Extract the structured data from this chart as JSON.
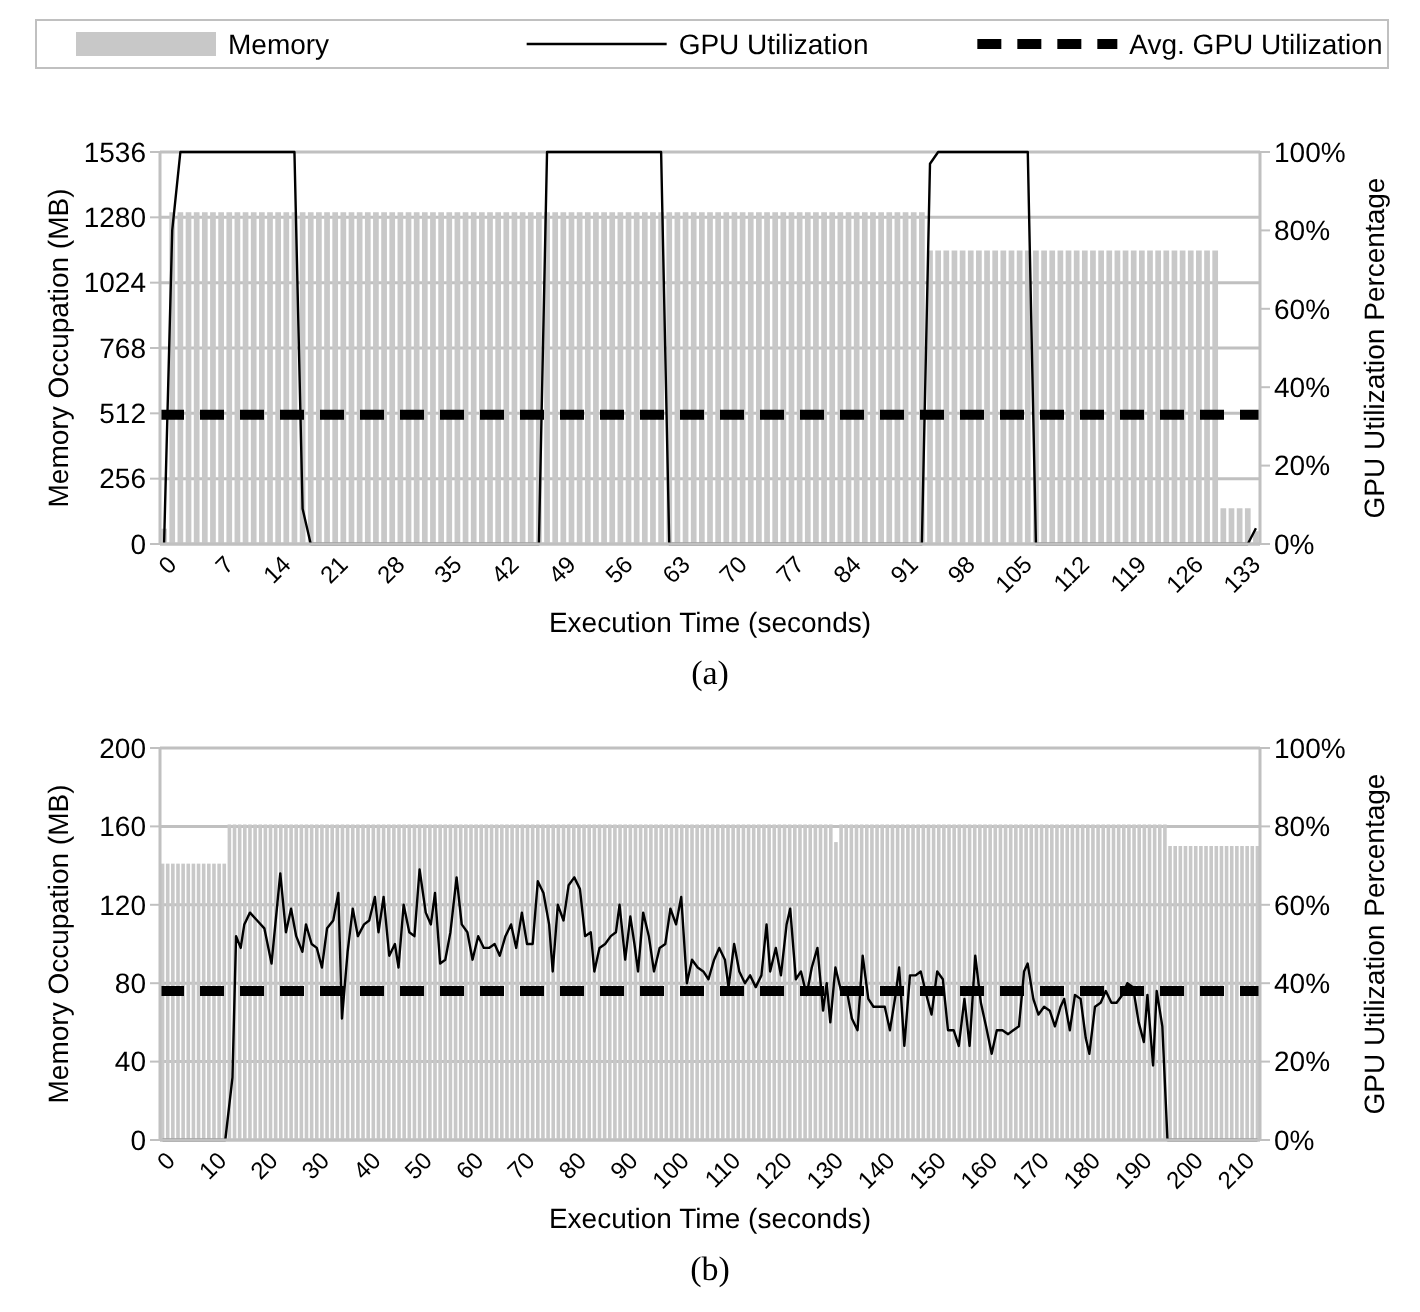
{
  "chart_data": [
    {
      "type": "bar",
      "title": "(a)",
      "xlabel": "Execution Time (seconds)",
      "ylabel": "Memory Occupation (MB)",
      "y2label": "GPU Utilization Percentage",
      "grid": "y",
      "legend": "top",
      "xlim": [
        -0.5,
        134.5
      ],
      "xticks": [
        0,
        7,
        14,
        21,
        28,
        35,
        42,
        49,
        56,
        63,
        70,
        77,
        84,
        91,
        98,
        105,
        112,
        119,
        126,
        133
      ],
      "ylim": [
        0,
        1536
      ],
      "yticks": [
        0,
        256,
        512,
        768,
        1024,
        1280,
        1536
      ],
      "y2lim": [
        0,
        100
      ],
      "y2ticks": [
        {
          "value": 0,
          "label": "0%"
        },
        {
          "value": 20,
          "label": "20%"
        },
        {
          "value": 40,
          "label": "40%"
        },
        {
          "value": 60,
          "label": "60%"
        },
        {
          "value": 80,
          "label": "80%"
        },
        {
          "value": 100,
          "label": "100%"
        }
      ],
      "ref_lines": [
        {
          "axis": "y2",
          "value": 33,
          "label": "Avg. GPU Utilization",
          "color": "#000000",
          "line_style": "dashed"
        }
      ],
      "series": [
        {
          "name": "Memory",
          "color": "#c8c8c8",
          "x": [
            0,
            1,
            2,
            3,
            4,
            5,
            6,
            7,
            8,
            9,
            10,
            11,
            12,
            13,
            14,
            15,
            16,
            17,
            18,
            19,
            20,
            21,
            22,
            23,
            24,
            25,
            26,
            27,
            28,
            29,
            30,
            31,
            32,
            33,
            34,
            35,
            36,
            37,
            38,
            39,
            40,
            41,
            42,
            43,
            44,
            45,
            46,
            47,
            48,
            49,
            50,
            51,
            52,
            53,
            54,
            55,
            56,
            57,
            58,
            59,
            60,
            61,
            62,
            63,
            64,
            65,
            66,
            67,
            68,
            69,
            70,
            71,
            72,
            73,
            74,
            75,
            76,
            77,
            78,
            79,
            80,
            81,
            82,
            83,
            84,
            85,
            86,
            87,
            88,
            89,
            90,
            91,
            92,
            93,
            94,
            95,
            96,
            97,
            98,
            99,
            100,
            101,
            102,
            103,
            104,
            105,
            106,
            107,
            108,
            109,
            110,
            111,
            112,
            113,
            114,
            115,
            116,
            117,
            118,
            119,
            120,
            121,
            122,
            123,
            124,
            125,
            126,
            127,
            128,
            129,
            130,
            131,
            132,
            133,
            134
          ],
          "values": [
            60,
            1300,
            1300,
            1300,
            1300,
            1300,
            1300,
            1300,
            1300,
            1300,
            1300,
            1300,
            1300,
            1300,
            1300,
            1300,
            1300,
            1300,
            1300,
            1300,
            1300,
            1300,
            1300,
            1300,
            1300,
            1300,
            1300,
            1300,
            1300,
            1300,
            1300,
            1300,
            1300,
            1300,
            1300,
            1300,
            1300,
            1300,
            1300,
            1300,
            1300,
            1300,
            1300,
            1300,
            1300,
            1300,
            1300,
            1300,
            1300,
            1300,
            1300,
            1300,
            1300,
            1300,
            1300,
            1300,
            1300,
            1300,
            1300,
            1300,
            1300,
            1300,
            1300,
            1300,
            1300,
            1300,
            1300,
            1300,
            1300,
            1300,
            1300,
            1300,
            1300,
            1300,
            1300,
            1300,
            1300,
            1300,
            1300,
            1300,
            1300,
            1300,
            1300,
            1300,
            1300,
            1300,
            1300,
            1300,
            1300,
            1300,
            1300,
            1300,
            1300,
            1300,
            1150,
            1150,
            1150,
            1150,
            1150,
            1150,
            1150,
            1150,
            1150,
            1150,
            1150,
            1150,
            1150,
            1150,
            1150,
            1150,
            1150,
            1150,
            1150,
            1150,
            1150,
            1150,
            1150,
            1150,
            1150,
            1150,
            1150,
            1150,
            1150,
            1150,
            1150,
            1150,
            1150,
            1150,
            1150,
            1150,
            140,
            140,
            140,
            140,
            50
          ]
        },
        {
          "name": "GPU Utilization",
          "type": "line",
          "axis": "y2",
          "color": "#000000",
          "x": [
            0,
            1,
            2,
            16,
            17,
            18,
            46,
            47,
            61,
            62,
            93,
            94,
            95,
            106,
            107,
            133,
            134
          ],
          "values": [
            0,
            80,
            100,
            100,
            9,
            0,
            0,
            100,
            100,
            0,
            0,
            97,
            100,
            100,
            0,
            0,
            4
          ]
        }
      ]
    },
    {
      "type": "bar",
      "title": "(b)",
      "xlabel": "Execution Time (seconds)",
      "ylabel": "Memory Occupation (MB)",
      "y2label": "GPU Utilization Percentage",
      "grid": "y",
      "xlim": [
        -0.5,
        213.5
      ],
      "xticks": [
        0,
        10,
        20,
        30,
        40,
        50,
        60,
        70,
        80,
        90,
        100,
        110,
        120,
        130,
        140,
        150,
        160,
        170,
        180,
        190,
        200,
        210
      ],
      "ylim": [
        0,
        200
      ],
      "yticks": [
        0,
        40,
        80,
        120,
        160,
        200
      ],
      "y2lim": [
        0,
        100
      ],
      "y2ticks": [
        {
          "value": 0,
          "label": "0%"
        },
        {
          "value": 20,
          "label": "20%"
        },
        {
          "value": 40,
          "label": "40%"
        },
        {
          "value": 60,
          "label": "60%"
        },
        {
          "value": 80,
          "label": "80%"
        },
        {
          "value": 100,
          "label": "100%"
        }
      ],
      "ref_lines": [
        {
          "axis": "y2",
          "value": 38,
          "color": "#000000",
          "line_style": "dashed"
        }
      ],
      "series": [
        {
          "color": "#c8c8c8",
          "x": [
            0,
            1,
            2,
            3,
            4,
            5,
            6,
            7,
            8,
            9,
            10,
            11,
            12,
            13,
            14,
            15,
            16,
            17,
            18,
            19,
            20,
            21,
            22,
            23,
            24,
            25,
            26,
            27,
            28,
            29,
            30,
            31,
            32,
            33,
            34,
            35,
            36,
            37,
            38,
            39,
            40,
            41,
            42,
            43,
            44,
            45,
            46,
            47,
            48,
            49,
            50,
            51,
            52,
            53,
            54,
            55,
            56,
            57,
            58,
            59,
            60,
            61,
            62,
            63,
            64,
            65,
            66,
            67,
            68,
            69,
            70,
            71,
            72,
            73,
            74,
            75,
            76,
            77,
            78,
            79,
            80,
            81,
            82,
            83,
            84,
            85,
            86,
            87,
            88,
            89,
            90,
            91,
            92,
            93,
            94,
            95,
            96,
            97,
            98,
            99,
            100,
            101,
            102,
            103,
            104,
            105,
            106,
            107,
            108,
            109,
            110,
            111,
            112,
            113,
            114,
            115,
            116,
            117,
            118,
            119,
            120,
            121,
            122,
            123,
            124,
            125,
            126,
            127,
            128,
            129,
            130,
            131,
            132,
            133,
            134,
            135,
            136,
            137,
            138,
            139,
            140,
            141,
            142,
            143,
            144,
            145,
            146,
            147,
            148,
            149,
            150,
            151,
            152,
            153,
            154,
            155,
            156,
            157,
            158,
            159,
            160,
            161,
            162,
            163,
            164,
            165,
            166,
            167,
            168,
            169,
            170,
            171,
            172,
            173,
            174,
            175,
            176,
            177,
            178,
            179,
            180,
            181,
            182,
            183,
            184,
            185,
            186,
            187,
            188,
            189,
            190,
            191,
            192,
            193,
            194,
            195,
            196,
            197,
            198,
            199,
            200,
            201,
            202,
            203,
            204,
            205,
            206,
            207,
            208,
            209,
            210,
            211,
            212,
            213
          ],
          "values": [
            141,
            141,
            141,
            141,
            141,
            141,
            141,
            141,
            141,
            141,
            141,
            141,
            141,
            161,
            161,
            161,
            161,
            161,
            161,
            161,
            161,
            161,
            161,
            161,
            161,
            161,
            161,
            161,
            161,
            161,
            161,
            161,
            161,
            161,
            161,
            161,
            161,
            161,
            161,
            161,
            161,
            161,
            161,
            161,
            161,
            161,
            161,
            161,
            161,
            161,
            161,
            161,
            161,
            161,
            161,
            161,
            161,
            161,
            161,
            161,
            161,
            161,
            161,
            161,
            161,
            161,
            161,
            161,
            161,
            161,
            161,
            161,
            161,
            161,
            161,
            161,
            161,
            161,
            161,
            161,
            161,
            161,
            161,
            161,
            161,
            161,
            161,
            161,
            161,
            161,
            161,
            161,
            161,
            161,
            161,
            161,
            161,
            161,
            161,
            161,
            161,
            161,
            161,
            161,
            161,
            161,
            161,
            161,
            161,
            161,
            161,
            161,
            161,
            161,
            161,
            161,
            161,
            161,
            161,
            161,
            161,
            161,
            161,
            161,
            161,
            161,
            161,
            161,
            161,
            161,
            161,
            152,
            161,
            161,
            161,
            161,
            161,
            161,
            161,
            161,
            161,
            161,
            161,
            161,
            161,
            161,
            161,
            161,
            161,
            161,
            161,
            161,
            161,
            161,
            161,
            161,
            161,
            161,
            161,
            161,
            161,
            161,
            161,
            161,
            161,
            161,
            161,
            161,
            161,
            161,
            161,
            161,
            161,
            161,
            161,
            161,
            161,
            161,
            161,
            161,
            161,
            161,
            161,
            161,
            161,
            161,
            161,
            161,
            161,
            161,
            161,
            161,
            161,
            161,
            161,
            161,
            150,
            150,
            150,
            150,
            150,
            150,
            150,
            150,
            150,
            150,
            150,
            150,
            150,
            150,
            150,
            150,
            150,
            150
          ]
        },
        {
          "type": "line",
          "axis": "y2",
          "color": "#000000",
          "x": [
            0,
            12.2,
            13.6,
            14.3,
            15.2,
            15.9,
            17,
            18.4,
            19.8,
            21.2,
            22.9,
            24,
            25,
            26,
            27.2,
            27.9,
            29,
            30,
            31,
            32,
            33.2,
            34.2,
            34.9,
            36,
            37,
            38,
            39.2,
            40.2,
            41.3,
            42,
            43,
            44.1,
            45.2,
            45.9,
            46.9,
            48,
            49,
            50,
            51.2,
            52.2,
            53,
            54,
            55,
            56,
            57.2,
            58.2,
            59.3,
            60.3,
            61.4,
            62.5,
            63.5,
            64.6,
            65.6,
            66.7,
            67.8,
            68.8,
            69.9,
            70.9,
            72,
            73,
            74.1,
            75.2,
            75.9,
            76.9,
            78,
            79,
            80.1,
            81.2,
            82.2,
            83.3,
            84,
            85,
            86.1,
            87.2,
            88.2,
            88.9,
            90,
            91,
            91.8,
            92.5,
            93.5,
            94.6,
            95.6,
            96.7,
            97.8,
            98.8,
            99.9,
            100.9,
            102,
            103,
            104.1,
            105.2,
            106.2,
            107.3,
            108.3,
            109.4,
            110.1,
            111.2,
            112.2,
            113.3,
            114.3,
            115.4,
            116.5,
            117.5,
            118.2,
            119.3,
            120.3,
            121.4,
            122.1,
            123.2,
            124.2,
            125.3,
            126.3,
            127.4,
            128.5,
            129.2,
            129.9,
            130.9,
            132,
            133,
            134.1,
            135.2,
            136.2,
            137.3,
            138.3,
            139.4,
            140.5,
            141.5,
            142.6,
            143.3,
            144.3,
            145.4,
            146.5,
            147.5,
            148.6,
            149.6,
            150.7,
            151.8,
            152.8,
            153.9,
            154.9,
            156,
            157,
            158.1,
            159.2,
            160.2,
            161.3,
            162.3,
            163.4,
            164.5,
            165.5,
            166.6,
            167.6,
            168.3,
            169.4,
            170.4,
            171.5,
            172.6,
            173.6,
            174.7,
            175.4,
            176.5,
            177.5,
            178.6,
            179.6,
            180.3,
            181.4,
            182.5,
            183.5,
            184.6,
            185.6,
            186.7,
            187.7,
            188.8,
            189.9,
            190.9,
            191.6,
            192.7,
            193.4,
            194.5,
            195.5,
            213
          ],
          "values": [
            0,
            0,
            16,
            52,
            49,
            55,
            58,
            56,
            54,
            45,
            68,
            53,
            59,
            52,
            48,
            55,
            50,
            49,
            44,
            54,
            56,
            63,
            31,
            48,
            59,
            52,
            55,
            56,
            62,
            53,
            62,
            47,
            50,
            44,
            60,
            53,
            52,
            69,
            58,
            55,
            63,
            45,
            46,
            53,
            67,
            55,
            53,
            46,
            52,
            49,
            49,
            50,
            47,
            52,
            55,
            49,
            58,
            50,
            50,
            66,
            63,
            55,
            43,
            60,
            56,
            65,
            67,
            64,
            52,
            53,
            43,
            49,
            50,
            52,
            53,
            60,
            46,
            57,
            50,
            43,
            58,
            52,
            43,
            49,
            50,
            59,
            55,
            62,
            40,
            46,
            44,
            43,
            41,
            46,
            49,
            46,
            39,
            50,
            43,
            40,
            42,
            39,
            42,
            55,
            43,
            49,
            42,
            55,
            59,
            41,
            43,
            37,
            44,
            49,
            33,
            40,
            30,
            44,
            38,
            39,
            31,
            28,
            47,
            36,
            34,
            34,
            34,
            28,
            37,
            44,
            24,
            42,
            42,
            43,
            37,
            32,
            43,
            41,
            28,
            28,
            24,
            36,
            24,
            47,
            35,
            29,
            22,
            28,
            28,
            27,
            28,
            29,
            43,
            45,
            36,
            32,
            34,
            33,
            29,
            34,
            36,
            28,
            37,
            36,
            26,
            22,
            34,
            35,
            38,
            35,
            35,
            37,
            40,
            39,
            30,
            25,
            37,
            19,
            38,
            29,
            0,
            0
          ]
        }
      ]
    }
  ]
}
